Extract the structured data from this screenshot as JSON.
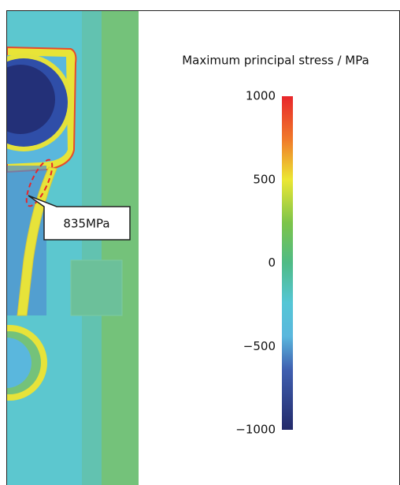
{
  "figure": {
    "colorbar": {
      "title": "Maximum principal stress / MPa",
      "lim": [
        -1000,
        1000
      ],
      "ticks": [
        1000,
        500,
        0,
        {
          "value": -500,
          "label": "−500"
        },
        {
          "value": -1000,
          "label": "−1000"
        }
      ]
    },
    "annotation": {
      "label": "835MPa"
    }
  }
}
